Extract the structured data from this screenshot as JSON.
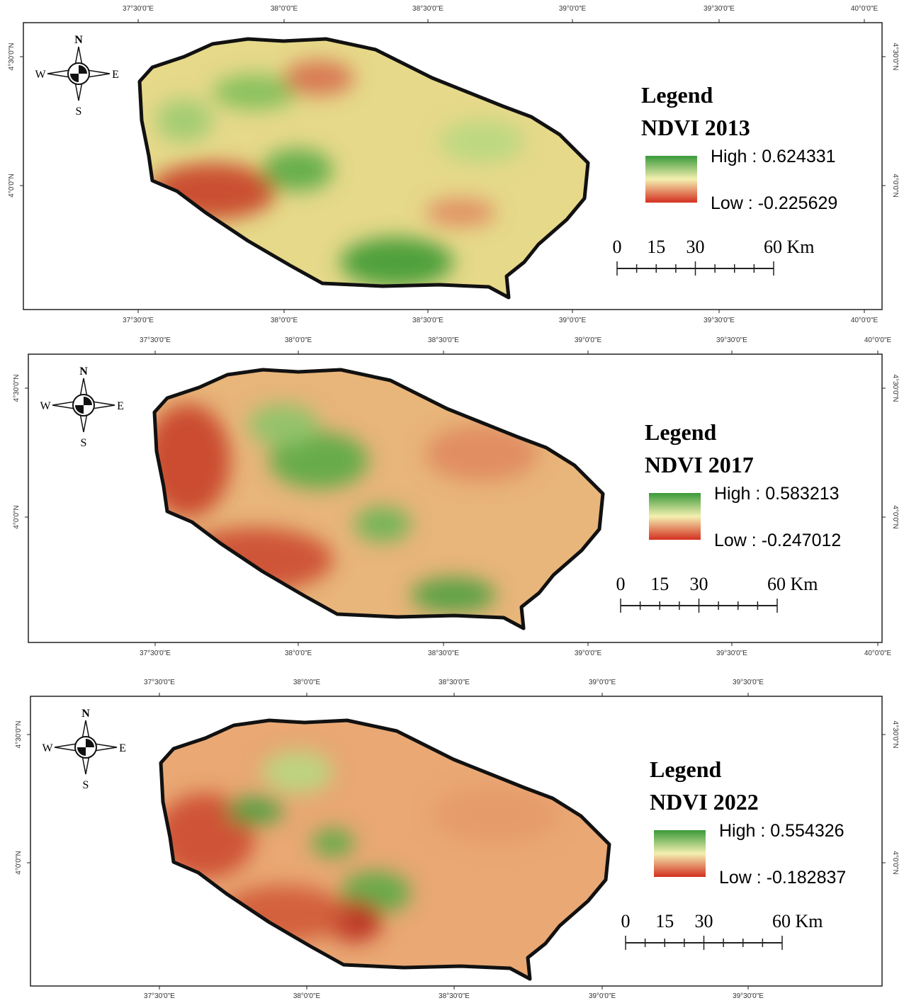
{
  "panels": [
    {
      "lon_ticks": [
        "37°30'0\"E",
        "38°0'0\"E",
        "38°30'0\"E",
        "39°0'0\"E",
        "39°30'0\"E",
        "40°0'0\"E"
      ],
      "lat_ticks": [
        "4°30'0\"N",
        "4°0'0\"N"
      ],
      "compass": {
        "n": "N",
        "s": "S",
        "w": "W",
        "e": "E"
      },
      "legend": {
        "title": "Legend",
        "layer": "NDVI 2013",
        "high": "High : 0.624331",
        "low": "Low : -0.225629"
      },
      "scale": [
        "0",
        "15",
        "30",
        "60 Km"
      ]
    },
    {
      "lon_ticks": [
        "37°30'0\"E",
        "38°0'0\"E",
        "38°30'0\"E",
        "39°0'0\"E",
        "39°30'0\"E",
        "40°0'0\"E"
      ],
      "lat_ticks": [
        "4°30'0\"N",
        "4°0'0\"N"
      ],
      "compass": {
        "n": "N",
        "s": "S",
        "w": "W",
        "e": "E"
      },
      "legend": {
        "title": "Legend",
        "layer": "NDVI 2017",
        "high": "High : 0.583213",
        "low": "Low : -0.247012"
      },
      "scale": [
        "0",
        "15",
        "30",
        "60 Km"
      ]
    },
    {
      "lon_ticks": [
        "37°30'0\"E",
        "38°0'0\"E",
        "38°30'0\"E",
        "39°0'0\"E",
        "39°30'0\"E"
      ],
      "lat_ticks": [
        "4°30'0\"N",
        "4°0'0\"N"
      ],
      "compass": {
        "n": "N",
        "s": "S",
        "w": "W",
        "e": "E"
      },
      "legend": {
        "title": "Legend",
        "layer": "NDVI 2022",
        "high": "High : 0.554326",
        "low": "Low : -0.182837"
      },
      "scale": [
        "0",
        "15",
        "30",
        "60 Km"
      ]
    }
  ]
}
